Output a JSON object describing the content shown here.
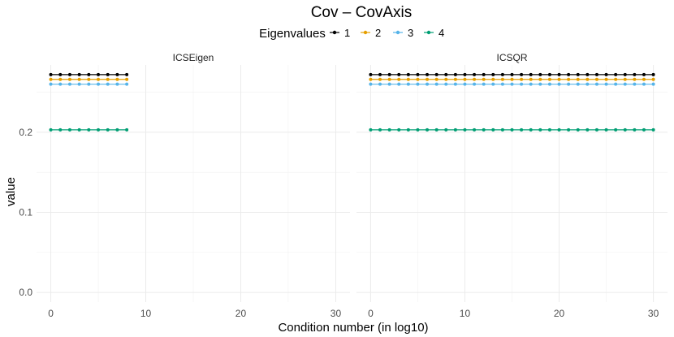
{
  "chart_data": {
    "type": "line",
    "title": "Cov – CovAxis",
    "xlabel": "Condition number (in log10)",
    "ylabel": "value",
    "ylim": [
      -0.012,
      0.284
    ],
    "y_ticks": [
      0.0,
      0.1,
      0.2
    ],
    "y_tick_labels": [
      "0.0",
      "0.1",
      "0.2"
    ],
    "x_ticks": [
      0,
      10,
      20,
      30
    ],
    "x_tick_labels": [
      "0",
      "10",
      "20",
      "30"
    ],
    "xlim": [
      -1.5,
      31.5
    ],
    "grid": true,
    "legend": {
      "title": "Eigenvalues",
      "position": "top",
      "entries": [
        {
          "label": "1",
          "color": "#000000"
        },
        {
          "label": "2",
          "color": "#E69F00"
        },
        {
          "label": "3",
          "color": "#56B4E9"
        },
        {
          "label": "4",
          "color": "#009E73"
        }
      ]
    },
    "facets": [
      {
        "label": "ICSEigen",
        "x": [
          0,
          1,
          2,
          3,
          4,
          5,
          6,
          7,
          8
        ],
        "series": [
          {
            "name": "1",
            "color": "#000000",
            "values": [
              0.272,
              0.272,
              0.272,
              0.272,
              0.272,
              0.272,
              0.272,
              0.272,
              0.272
            ]
          },
          {
            "name": "2",
            "color": "#E69F00",
            "values": [
              0.266,
              0.266,
              0.266,
              0.266,
              0.266,
              0.266,
              0.266,
              0.266,
              0.266
            ]
          },
          {
            "name": "3",
            "color": "#56B4E9",
            "values": [
              0.26,
              0.26,
              0.26,
              0.26,
              0.26,
              0.26,
              0.26,
              0.26,
              0.26
            ]
          },
          {
            "name": "4",
            "color": "#009E73",
            "values": [
              0.203,
              0.203,
              0.203,
              0.203,
              0.203,
              0.203,
              0.203,
              0.203,
              0.203
            ]
          }
        ]
      },
      {
        "label": "ICSQR",
        "x": [
          0,
          1,
          2,
          3,
          4,
          5,
          6,
          7,
          8,
          9,
          10,
          11,
          12,
          13,
          14,
          15,
          16,
          17,
          18,
          19,
          20,
          21,
          22,
          23,
          24,
          25,
          26,
          27,
          28,
          29,
          30
        ],
        "series": [
          {
            "name": "1",
            "color": "#000000",
            "values": [
              0.272,
              0.272,
              0.272,
              0.272,
              0.272,
              0.272,
              0.272,
              0.272,
              0.272,
              0.272,
              0.272,
              0.272,
              0.272,
              0.272,
              0.272,
              0.272,
              0.272,
              0.272,
              0.272,
              0.272,
              0.272,
              0.272,
              0.272,
              0.272,
              0.272,
              0.272,
              0.272,
              0.272,
              0.272,
              0.272,
              0.272
            ]
          },
          {
            "name": "2",
            "color": "#E69F00",
            "values": [
              0.266,
              0.266,
              0.266,
              0.266,
              0.266,
              0.266,
              0.266,
              0.266,
              0.266,
              0.266,
              0.266,
              0.266,
              0.266,
              0.266,
              0.266,
              0.266,
              0.266,
              0.266,
              0.266,
              0.266,
              0.266,
              0.266,
              0.266,
              0.266,
              0.266,
              0.266,
              0.266,
              0.266,
              0.266,
              0.266,
              0.266
            ]
          },
          {
            "name": "3",
            "color": "#56B4E9",
            "values": [
              0.26,
              0.26,
              0.26,
              0.26,
              0.26,
              0.26,
              0.26,
              0.26,
              0.26,
              0.26,
              0.26,
              0.26,
              0.26,
              0.26,
              0.26,
              0.26,
              0.26,
              0.26,
              0.26,
              0.26,
              0.26,
              0.26,
              0.26,
              0.26,
              0.26,
              0.26,
              0.26,
              0.26,
              0.26,
              0.26,
              0.26
            ]
          },
          {
            "name": "4",
            "color": "#009E73",
            "values": [
              0.203,
              0.203,
              0.203,
              0.203,
              0.203,
              0.203,
              0.203,
              0.203,
              0.203,
              0.203,
              0.203,
              0.203,
              0.203,
              0.203,
              0.203,
              0.203,
              0.203,
              0.203,
              0.203,
              0.203,
              0.203,
              0.203,
              0.203,
              0.203,
              0.203,
              0.203,
              0.203,
              0.203,
              0.203,
              0.203,
              0.203
            ]
          }
        ]
      }
    ]
  }
}
